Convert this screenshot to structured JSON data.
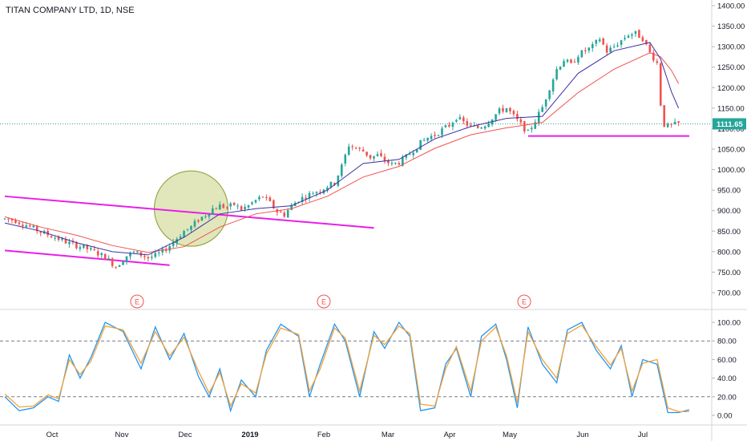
{
  "title": "TITAN COMPANY LTD, 1D, NSE",
  "chart_data": [
    {
      "type": "candlestick",
      "title": "TITAN COMPANY LTD, 1D, NSE",
      "x_ticks": [
        "Oct",
        "Nov",
        "Dec",
        "2019",
        "Feb",
        "Mar",
        "Apr",
        "May",
        "Jun",
        "Jul"
      ],
      "y_ticks": [
        700,
        750,
        800,
        850,
        900,
        950,
        1000,
        1050,
        1100,
        1150,
        1200,
        1250,
        1300,
        1350,
        1400
      ],
      "y_tick_labels": [
        "700.00",
        "750.00",
        "800.00",
        "850.00",
        "900.00",
        "950.00",
        "1000.00",
        "1050.00",
        "1100.00",
        "1150.00",
        "1200.00",
        "1250.00",
        "1300.00",
        "1350.00",
        "1400.00"
      ],
      "ylim": [
        680,
        1415
      ],
      "last_price": 1111.65,
      "last_price_label": "1111.65",
      "earnings_markers": [
        "E",
        "E",
        "E"
      ],
      "colors": {
        "up": "#26a69a",
        "down": "#ef5350",
        "fast_ma": "#3f2fa5",
        "slow_ma": "#ef5350",
        "trendline": "#e91ee9",
        "price_line": "#26a69a"
      },
      "price_path": [
        [
          0,
          880
        ],
        [
          3,
          876
        ],
        [
          6,
          865
        ],
        [
          10,
          848
        ],
        [
          14,
          835
        ],
        [
          18,
          820
        ],
        [
          22,
          810
        ],
        [
          25,
          800
        ],
        [
          28,
          787
        ],
        [
          31,
          763
        ],
        [
          34,
          790
        ],
        [
          36,
          798
        ],
        [
          38,
          793
        ],
        [
          40,
          785
        ],
        [
          42,
          790
        ],
        [
          44,
          800
        ],
        [
          46,
          815
        ],
        [
          48,
          833
        ],
        [
          50,
          850
        ],
        [
          52,
          860
        ],
        [
          54,
          878
        ],
        [
          56,
          890
        ],
        [
          58,
          905
        ],
        [
          60,
          912
        ],
        [
          62,
          908
        ],
        [
          64,
          915
        ],
        [
          66,
          903
        ],
        [
          68,
          912
        ],
        [
          70,
          925
        ],
        [
          72,
          935
        ],
        [
          74,
          918
        ],
        [
          76,
          898
        ],
        [
          78,
          890
        ],
        [
          80,
          912
        ],
        [
          82,
          927
        ],
        [
          84,
          935
        ],
        [
          86,
          944
        ],
        [
          88,
          950
        ],
        [
          90,
          960
        ],
        [
          92,
          968
        ],
        [
          94,
          1008
        ],
        [
          96,
          1060
        ],
        [
          98,
          1052
        ],
        [
          100,
          1045
        ],
        [
          102,
          1030
        ],
        [
          104,
          1035
        ],
        [
          106,
          1022
        ],
        [
          108,
          1012
        ],
        [
          110,
          1018
        ],
        [
          112,
          1030
        ],
        [
          114,
          1048
        ],
        [
          116,
          1065
        ],
        [
          118,
          1078
        ],
        [
          120,
          1085
        ],
        [
          122,
          1097
        ],
        [
          124,
          1108
        ],
        [
          126,
          1128
        ],
        [
          128,
          1115
        ],
        [
          130,
          1105
        ],
        [
          132,
          1102
        ],
        [
          134,
          1110
        ],
        [
          136,
          1127
        ],
        [
          138,
          1143
        ],
        [
          140,
          1150
        ],
        [
          142,
          1130
        ],
        [
          144,
          1110
        ],
        [
          146,
          1090
        ],
        [
          148,
          1120
        ],
        [
          150,
          1152
        ],
        [
          152,
          1200
        ],
        [
          154,
          1245
        ],
        [
          156,
          1268
        ],
        [
          158,
          1255
        ],
        [
          160,
          1280
        ],
        [
          162,
          1290
        ],
        [
          164,
          1300
        ],
        [
          166,
          1320
        ],
        [
          168,
          1288
        ],
        [
          170,
          1300
        ],
        [
          172,
          1315
        ],
        [
          174,
          1330
        ],
        [
          176,
          1332
        ],
        [
          178,
          1320
        ],
        [
          180,
          1285
        ],
        [
          182,
          1260
        ],
        [
          183,
          1160
        ],
        [
          184,
          1110
        ],
        [
          185,
          1105
        ],
        [
          186,
          1108
        ],
        [
          188,
          1112
        ]
      ],
      "fast_ma": [
        [
          0,
          870
        ],
        [
          10,
          850
        ],
        [
          20,
          822
        ],
        [
          30,
          800
        ],
        [
          40,
          792
        ],
        [
          50,
          835
        ],
        [
          60,
          892
        ],
        [
          70,
          905
        ],
        [
          80,
          912
        ],
        [
          90,
          950
        ],
        [
          100,
          1015
        ],
        [
          110,
          1025
        ],
        [
          120,
          1075
        ],
        [
          130,
          1105
        ],
        [
          140,
          1125
        ],
        [
          150,
          1130
        ],
        [
          160,
          1235
        ],
        [
          170,
          1290
        ],
        [
          180,
          1310
        ],
        [
          183,
          1270
        ],
        [
          186,
          1190
        ],
        [
          188,
          1150
        ]
      ],
      "slow_ma": [
        [
          0,
          885
        ],
        [
          10,
          860
        ],
        [
          20,
          840
        ],
        [
          30,
          815
        ],
        [
          40,
          798
        ],
        [
          50,
          812
        ],
        [
          60,
          860
        ],
        [
          70,
          892
        ],
        [
          80,
          905
        ],
        [
          90,
          935
        ],
        [
          100,
          982
        ],
        [
          110,
          1008
        ],
        [
          120,
          1052
        ],
        [
          130,
          1085
        ],
        [
          140,
          1102
        ],
        [
          150,
          1115
        ],
        [
          160,
          1188
        ],
        [
          170,
          1245
        ],
        [
          180,
          1285
        ],
        [
          183,
          1275
        ],
        [
          186,
          1242
        ],
        [
          188,
          1210
        ]
      ],
      "trendlines": [
        {
          "from": [
            0,
            935
          ],
          "to": [
            103,
            858
          ]
        },
        {
          "from": [
            0,
            803
          ],
          "to": [
            46,
            767
          ]
        },
        {
          "from": [
            146,
            1082
          ],
          "to": [
            191,
            1082
          ]
        }
      ],
      "highlight_circle": {
        "center": [
          52,
          905
        ],
        "label": ""
      }
    },
    {
      "type": "line",
      "title": "",
      "y_ticks": [
        0,
        20,
        40,
        60,
        80,
        100
      ],
      "y_tick_labels": [
        "0.00",
        "20.00",
        "40.00",
        "60.00",
        "80.00",
        "100.00"
      ],
      "ylim": [
        -8,
        108
      ],
      "bands": [
        20,
        80
      ],
      "series": [
        {
          "color": "#2196f3",
          "values": [
            [
              0,
              20
            ],
            [
              4,
              5
            ],
            [
              8,
              8
            ],
            [
              12,
              20
            ],
            [
              15,
              15
            ],
            [
              18,
              65
            ],
            [
              21,
              40
            ],
            [
              24,
              62
            ],
            [
              28,
              100
            ],
            [
              33,
              90
            ],
            [
              38,
              50
            ],
            [
              42,
              95
            ],
            [
              46,
              60
            ],
            [
              50,
              88
            ],
            [
              54,
              42
            ],
            [
              57,
              20
            ],
            [
              60,
              50
            ],
            [
              63,
              5
            ],
            [
              66,
              38
            ],
            [
              70,
              20
            ],
            [
              73,
              70
            ],
            [
              77,
              98
            ],
            [
              82,
              85
            ],
            [
              85,
              20
            ],
            [
              88,
              55
            ],
            [
              92,
              98
            ],
            [
              95,
              80
            ],
            [
              99,
              20
            ],
            [
              103,
              90
            ],
            [
              106,
              72
            ],
            [
              110,
              100
            ],
            [
              113,
              85
            ],
            [
              116,
              5
            ],
            [
              120,
              8
            ],
            [
              123,
              55
            ],
            [
              126,
              72
            ],
            [
              130,
              20
            ],
            [
              133,
              85
            ],
            [
              137,
              98
            ],
            [
              140,
              60
            ],
            [
              143,
              8
            ],
            [
              146,
              95
            ],
            [
              150,
              55
            ],
            [
              154,
              35
            ],
            [
              157,
              92
            ],
            [
              161,
              100
            ],
            [
              165,
              70
            ],
            [
              169,
              50
            ],
            [
              172,
              75
            ],
            [
              175,
              20
            ],
            [
              178,
              60
            ],
            [
              182,
              55
            ],
            [
              185,
              3
            ],
            [
              188,
              3
            ],
            [
              191,
              6
            ]
          ]
        },
        {
          "color": "#f4a137",
          "values": [
            [
              0,
              23
            ],
            [
              4,
              9
            ],
            [
              8,
              10
            ],
            [
              12,
              22
            ],
            [
              15,
              18
            ],
            [
              18,
              60
            ],
            [
              21,
              44
            ],
            [
              24,
              58
            ],
            [
              28,
              96
            ],
            [
              33,
              92
            ],
            [
              38,
              56
            ],
            [
              42,
              90
            ],
            [
              46,
              64
            ],
            [
              50,
              84
            ],
            [
              54,
              48
            ],
            [
              57,
              24
            ],
            [
              60,
              46
            ],
            [
              63,
              10
            ],
            [
              66,
              34
            ],
            [
              70,
              24
            ],
            [
              73,
              66
            ],
            [
              77,
              94
            ],
            [
              82,
              87
            ],
            [
              85,
              26
            ],
            [
              88,
              50
            ],
            [
              92,
              94
            ],
            [
              95,
              83
            ],
            [
              99,
              26
            ],
            [
              103,
              86
            ],
            [
              106,
              76
            ],
            [
              110,
              96
            ],
            [
              113,
              88
            ],
            [
              116,
              12
            ],
            [
              120,
              10
            ],
            [
              123,
              50
            ],
            [
              126,
              74
            ],
            [
              130,
              26
            ],
            [
              133,
              80
            ],
            [
              137,
              95
            ],
            [
              140,
              64
            ],
            [
              143,
              14
            ],
            [
              146,
              90
            ],
            [
              150,
              60
            ],
            [
              154,
              40
            ],
            [
              157,
              88
            ],
            [
              161,
              97
            ],
            [
              165,
              74
            ],
            [
              169,
              54
            ],
            [
              172,
              72
            ],
            [
              175,
              26
            ],
            [
              178,
              56
            ],
            [
              182,
              60
            ],
            [
              185,
              8
            ],
            [
              188,
              4
            ],
            [
              191,
              4
            ]
          ]
        }
      ]
    }
  ]
}
